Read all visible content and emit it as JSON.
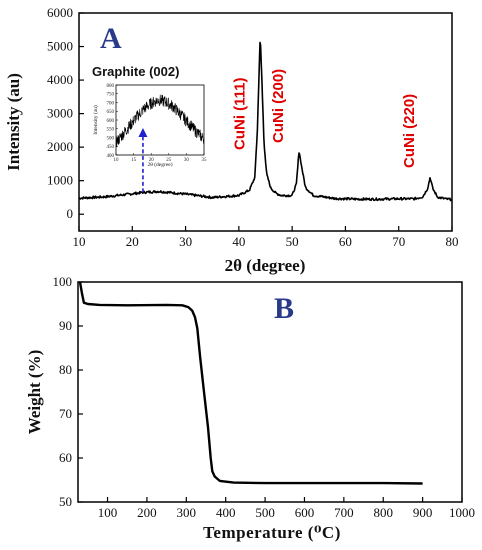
{
  "chart_data": [
    {
      "panel": "A",
      "type": "line",
      "xlabel": "2θ (degree)",
      "ylabel": "Intensity (au)",
      "xlim": [
        10,
        80
      ],
      "ylim": [
        -500,
        6000
      ],
      "xticks": [
        10,
        20,
        30,
        40,
        50,
        60,
        70,
        80
      ],
      "yticks": [
        0,
        1000,
        2000,
        3000,
        4000,
        5000,
        6000
      ],
      "series": [
        {
          "x": [
            10,
            15,
            20,
            22,
            25,
            30,
            35,
            40,
            42,
            43,
            43.5,
            44,
            44.3,
            44.7,
            45.2,
            46,
            47,
            48,
            50,
            50.8,
            51.3,
            51.8,
            52.5,
            54,
            58,
            62,
            66,
            70,
            73,
            74.5,
            75.4,
            75.9,
            76.4,
            77.3,
            79,
            80
          ],
          "y": [
            480,
            520,
            610,
            650,
            680,
            600,
            500,
            560,
            720,
            1100,
            2600,
            5350,
            4100,
            2200,
            1200,
            780,
            620,
            560,
            560,
            900,
            1900,
            1400,
            800,
            560,
            470,
            450,
            450,
            460,
            460,
            520,
            760,
            1100,
            760,
            510,
            450,
            440
          ]
        }
      ],
      "annotations": [
        "CuNi (111)",
        "CuNi (200)",
        "CuNi (220)"
      ],
      "peak_positions": [
        44.1,
        51.3,
        75.9
      ],
      "inset": {
        "title": "Graphite (002)",
        "xlabel": "2θ (degree)",
        "ylabel": "Intensity (au)",
        "xlim": [
          10,
          35
        ],
        "ylim": [
          400,
          800
        ],
        "xticks": [
          10,
          15,
          20,
          25,
          30,
          35
        ],
        "yticks": [
          400,
          450,
          500,
          550,
          600,
          650,
          700,
          750,
          800
        ],
        "series": [
          {
            "x": [
              10,
              12,
              14,
              16,
              18,
              20,
              22,
              24,
              26,
              28,
              30,
              32,
              34,
              35
            ],
            "y": [
              470,
              520,
              570,
              620,
              665,
              695,
              715,
              705,
              680,
              640,
              595,
              550,
              510,
              490
            ]
          }
        ],
        "arrow_x": 22
      }
    },
    {
      "panel": "B",
      "type": "line",
      "xlabel": "Temperature (⁰C)",
      "ylabel": "Weight (%)",
      "xlim": [
        25,
        1000
      ],
      "ylim": [
        50,
        100
      ],
      "xticks": [
        100,
        200,
        300,
        400,
        500,
        600,
        700,
        800,
        900,
        1000
      ],
      "yticks": [
        50,
        60,
        70,
        80,
        90,
        100
      ],
      "series": [
        {
          "x": [
            30,
            35,
            40,
            50,
            80,
            150,
            250,
            290,
            305,
            315,
            322,
            328,
            335,
            345,
            355,
            362,
            366,
            372,
            385,
            420,
            500,
            600,
            700,
            800,
            900
          ],
          "y": [
            100,
            97.5,
            95.3,
            95.0,
            94.8,
            94.7,
            94.8,
            94.7,
            94.3,
            93.5,
            92.0,
            89.5,
            83,
            75,
            67,
            60,
            57.0,
            55.8,
            54.8,
            54.4,
            54.3,
            54.3,
            54.3,
            54.3,
            54.2
          ]
        }
      ]
    }
  ]
}
